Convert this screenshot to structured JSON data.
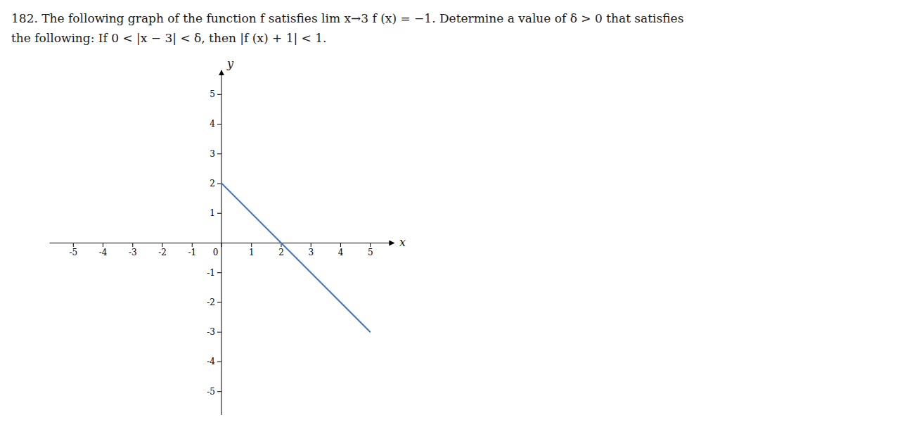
{
  "chart_data": {
    "type": "line",
    "title": "182. The following graph of the function f satisfies lim x→3 f (x) = −1. Determine a value of δ > 0 that satisfies",
    "subtitle": "the following: If 0 < |x − 3| < δ, then |f (x) + 1| < 1.",
    "x": [
      0,
      5
    ],
    "values": [
      2,
      -3
    ],
    "color": "#4472c4",
    "xlim": [
      -5.8,
      5.8
    ],
    "ylim": [
      -5.8,
      5.8
    ],
    "xticks": [
      -5,
      -4,
      -3,
      -2,
      -1,
      0,
      1,
      2,
      3,
      4,
      5
    ],
    "yticks": [
      -5,
      -4,
      -3,
      -2,
      -1,
      1,
      2,
      3,
      4,
      5
    ],
    "xlabel": "x",
    "ylabel": "y"
  }
}
